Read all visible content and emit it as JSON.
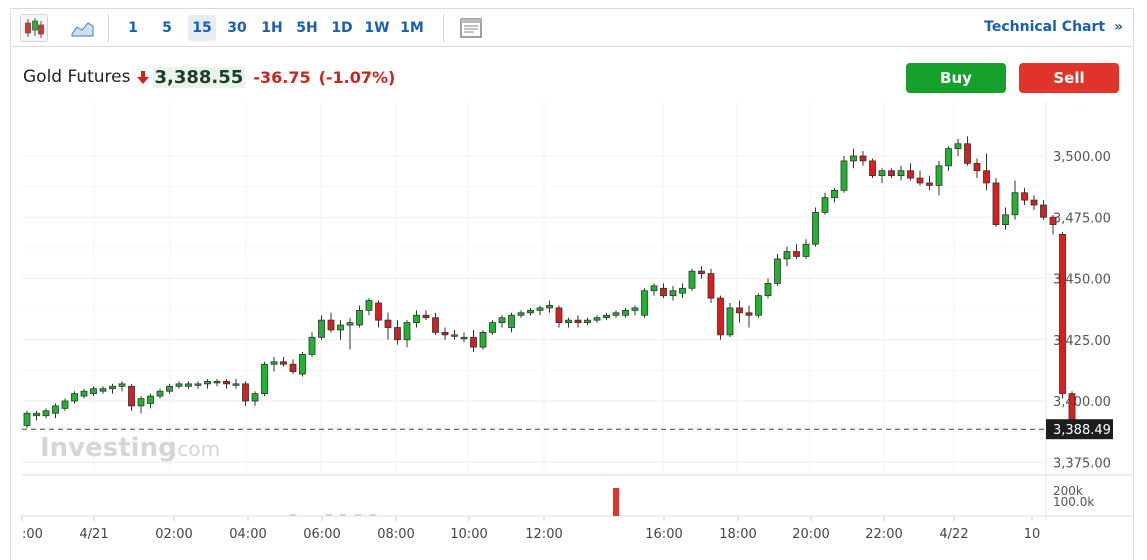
{
  "toolbar": {
    "intervals": [
      "1",
      "5",
      "15",
      "30",
      "1H",
      "5H",
      "1D",
      "1W",
      "1M"
    ],
    "active_interval": "15",
    "technical_chart_label": "Technical Chart",
    "technical_chart_chevron": "»",
    "icons": [
      "candlestick-icon",
      "area-chart-icon",
      "news-panel-icon"
    ]
  },
  "instrument": {
    "name": "Gold Futures",
    "price": "3,388.55",
    "change": "-36.75",
    "change_pct": "(-1.07%)",
    "direction_icon": "down-arrow-icon"
  },
  "actions": {
    "buy_label": "Buy",
    "sell_label": "Sell"
  },
  "colors": {
    "up": "#1fb32f",
    "down": "#d81f1f",
    "accent": "#1a5fb4",
    "buy": "#14a02a",
    "sell": "#e0342b"
  },
  "watermark": {
    "brand": "Investing",
    "suffix": ".com"
  },
  "chart_data": {
    "type": "candlestick",
    "interval": "15",
    "ylim": [
      3368,
      3512
    ],
    "y_ticks": [
      3375,
      3400,
      3425,
      3450,
      3475,
      3500
    ],
    "y_tick_labels": [
      "3,375.00",
      "3,400.00",
      "3,425.00",
      "3,450.00",
      "3,475.00",
      "3,500.00"
    ],
    "x_labels": [
      ":00",
      "4/21",
      "02:00",
      "04:00",
      "06:00",
      "08:00",
      "10:00",
      "12:00",
      "16:00",
      "18:00",
      "20:00",
      "22:00",
      "4/22",
      "10"
    ],
    "last_price": 3388.49,
    "last_price_label": "3,388.49",
    "volume_ticks": [
      "200k",
      "100.0k"
    ],
    "grid": true,
    "ohlc": [
      [
        3390,
        3396,
        3389,
        3395
      ],
      [
        3394,
        3396,
        3392,
        3395
      ],
      [
        3394,
        3397,
        3393,
        3396
      ],
      [
        3395,
        3399,
        3393,
        3398
      ],
      [
        3397,
        3401,
        3396,
        3400
      ],
      [
        3400,
        3404,
        3399,
        3403
      ],
      [
        3402,
        3405,
        3401,
        3404
      ],
      [
        3403,
        3406,
        3402,
        3405
      ],
      [
        3404,
        3406,
        3403,
        3405
      ],
      [
        3405,
        3407,
        3403,
        3406
      ],
      [
        3406,
        3408,
        3404,
        3407
      ],
      [
        3406,
        3407,
        3396,
        3398
      ],
      [
        3398,
        3402,
        3395,
        3401
      ],
      [
        3399,
        3403,
        3397,
        3402
      ],
      [
        3402,
        3405,
        3401,
        3404
      ],
      [
        3404,
        3407,
        3403,
        3406
      ],
      [
        3406,
        3408,
        3405,
        3407
      ],
      [
        3406,
        3408,
        3405,
        3407
      ],
      [
        3407,
        3408,
        3405,
        3407
      ],
      [
        3407,
        3409,
        3405,
        3408
      ],
      [
        3408,
        3409,
        3406,
        3408
      ],
      [
        3408,
        3409,
        3405,
        3407
      ],
      [
        3407,
        3409,
        3405,
        3407
      ],
      [
        3407,
        3408,
        3398,
        3400
      ],
      [
        3400,
        3404,
        3398,
        3403
      ],
      [
        3403,
        3416,
        3402,
        3415
      ],
      [
        3415,
        3418,
        3412,
        3416
      ],
      [
        3416,
        3418,
        3414,
        3415
      ],
      [
        3415,
        3417,
        3411,
        3412
      ],
      [
        3411,
        3420,
        3410,
        3419
      ],
      [
        3419,
        3428,
        3418,
        3426
      ],
      [
        3426,
        3435,
        3425,
        3433
      ],
      [
        3433,
        3436,
        3428,
        3429
      ],
      [
        3429,
        3433,
        3425,
        3431
      ],
      [
        3431,
        3434,
        3421,
        3432
      ],
      [
        3431,
        3439,
        3430,
        3437
      ],
      [
        3437,
        3442,
        3435,
        3441
      ],
      [
        3440,
        3441,
        3430,
        3433
      ],
      [
        3433,
        3436,
        3425,
        3430
      ],
      [
        3430,
        3433,
        3423,
        3425
      ],
      [
        3425,
        3433,
        3422,
        3432
      ],
      [
        3432,
        3437,
        3430,
        3435
      ],
      [
        3435,
        3437,
        3433,
        3434
      ],
      [
        3434,
        3436,
        3427,
        3428
      ],
      [
        3428,
        3430,
        3425,
        3427
      ],
      [
        3427,
        3429,
        3425,
        3427
      ],
      [
        3426,
        3428,
        3424,
        3426
      ],
      [
        3426,
        3429,
        3420,
        3422
      ],
      [
        3422,
        3429,
        3421,
        3428
      ],
      [
        3428,
        3433,
        3427,
        3432
      ],
      [
        3432,
        3435,
        3430,
        3434
      ],
      [
        3430,
        3436,
        3428,
        3435
      ],
      [
        3435,
        3437,
        3434,
        3436
      ],
      [
        3436,
        3438,
        3435,
        3437
      ],
      [
        3437,
        3439,
        3435,
        3438
      ],
      [
        3438,
        3441,
        3436,
        3439
      ],
      [
        3438,
        3439,
        3430,
        3432
      ],
      [
        3432,
        3434,
        3430,
        3433
      ],
      [
        3433,
        3435,
        3430,
        3432
      ],
      [
        3432,
        3434,
        3431,
        3433
      ],
      [
        3433,
        3435,
        3432,
        3434
      ],
      [
        3434,
        3436,
        3433,
        3435
      ],
      [
        3435,
        3437,
        3434,
        3436
      ],
      [
        3435,
        3438,
        3434,
        3437
      ],
      [
        3437,
        3439,
        3435,
        3438
      ],
      [
        3435,
        3446,
        3434,
        3445
      ],
      [
        3445,
        3448,
        3443,
        3447
      ],
      [
        3446,
        3448,
        3442,
        3443
      ],
      [
        3443,
        3447,
        3441,
        3445
      ],
      [
        3444,
        3448,
        3442,
        3446
      ],
      [
        3446,
        3454,
        3445,
        3453
      ],
      [
        3453,
        3455,
        3450,
        3452
      ],
      [
        3452,
        3454,
        3440,
        3442
      ],
      [
        3442,
        3443,
        3425,
        3427
      ],
      [
        3427,
        3440,
        3426,
        3438
      ],
      [
        3438,
        3441,
        3432,
        3436
      ],
      [
        3436,
        3439,
        3430,
        3435
      ],
      [
        3435,
        3444,
        3434,
        3443
      ],
      [
        3443,
        3450,
        3442,
        3448
      ],
      [
        3448,
        3460,
        3447,
        3458
      ],
      [
        3458,
        3463,
        3455,
        3461
      ],
      [
        3461,
        3464,
        3458,
        3459
      ],
      [
        3459,
        3466,
        3458,
        3464
      ],
      [
        3464,
        3479,
        3463,
        3477
      ],
      [
        3477,
        3485,
        3476,
        3483
      ],
      [
        3483,
        3487,
        3481,
        3486
      ],
      [
        3486,
        3500,
        3485,
        3498
      ],
      [
        3498,
        3503,
        3495,
        3500
      ],
      [
        3500,
        3502,
        3496,
        3498
      ],
      [
        3498,
        3499,
        3491,
        3492
      ],
      [
        3492,
        3495,
        3489,
        3494
      ],
      [
        3494,
        3495,
        3491,
        3492
      ],
      [
        3492,
        3496,
        3490,
        3494
      ],
      [
        3494,
        3497,
        3490,
        3491
      ],
      [
        3491,
        3494,
        3488,
        3489
      ],
      [
        3489,
        3492,
        3486,
        3488
      ],
      [
        3488,
        3498,
        3484,
        3496
      ],
      [
        3496,
        3504,
        3494,
        3503
      ],
      [
        3503,
        3507,
        3500,
        3505
      ],
      [
        3505,
        3508,
        3496,
        3497
      ],
      [
        3497,
        3499,
        3491,
        3494
      ],
      [
        3494,
        3501,
        3486,
        3489
      ],
      [
        3489,
        3491,
        3471,
        3472
      ],
      [
        3472,
        3479,
        3470,
        3476
      ],
      [
        3476,
        3490,
        3474,
        3485
      ],
      [
        3485,
        3487,
        3480,
        3482
      ],
      [
        3482,
        3484,
        3478,
        3480
      ],
      [
        3480,
        3482,
        3474,
        3475
      ],
      [
        3475,
        3476,
        3468,
        3472
      ],
      [
        3468,
        3469,
        3401,
        3403
      ],
      [
        3403,
        3404,
        3385,
        3389
      ]
    ],
    "volume": [
      {
        "index": 106,
        "value": 60000,
        "color": "#f0cbcb"
      },
      {
        "index": 108,
        "value": 70000,
        "color": "#f0cbcb"
      },
      {
        "index": 100,
        "value": 145000,
        "color": "#e0342b"
      }
    ]
  }
}
